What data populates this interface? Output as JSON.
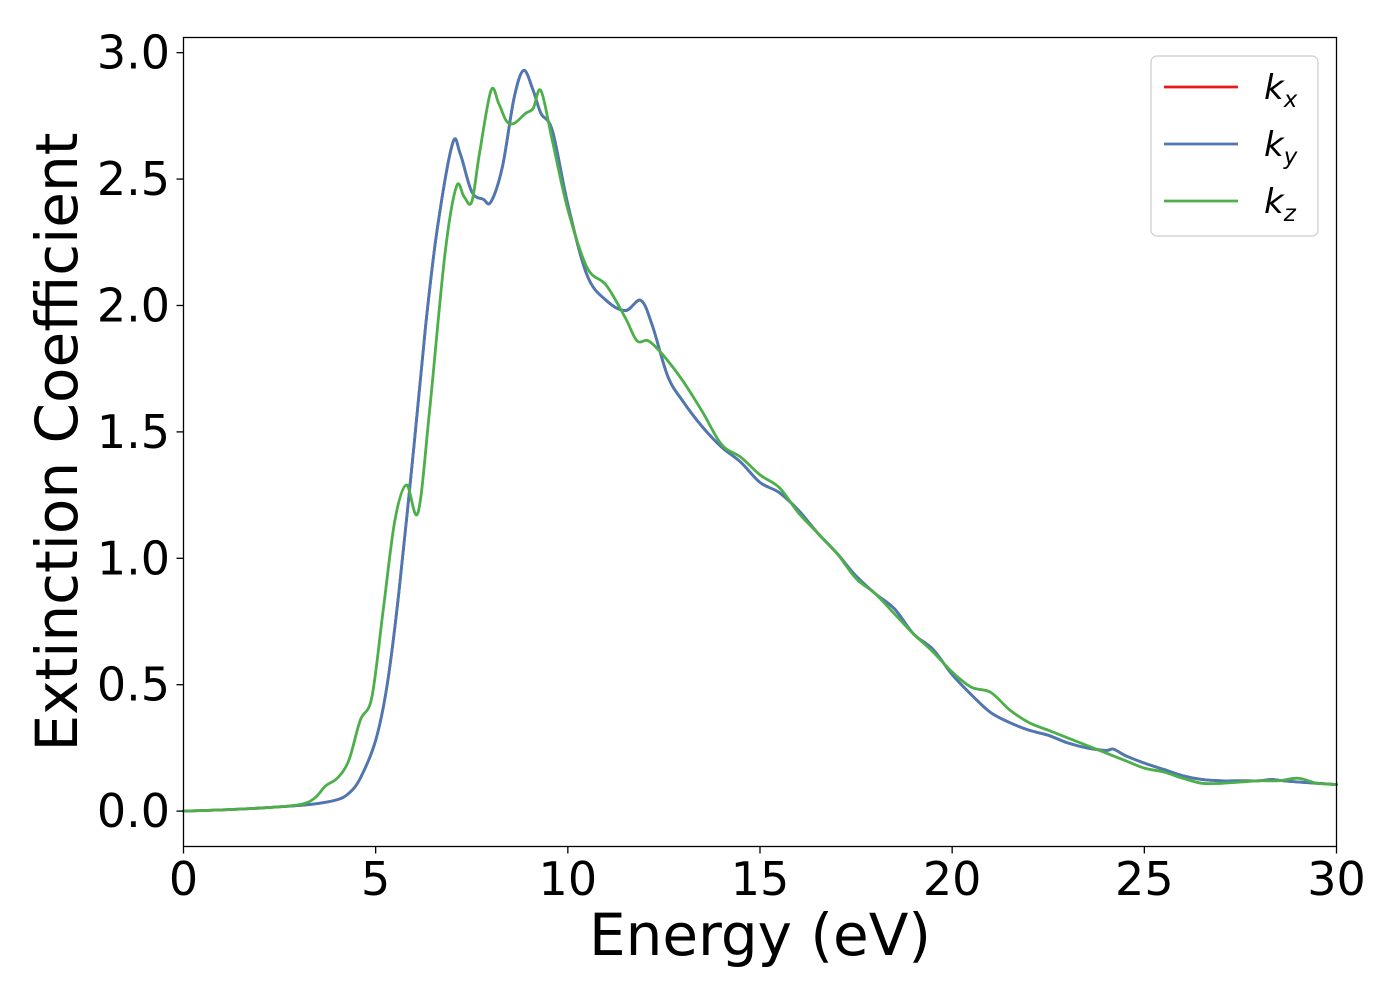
{
  "chart_data": {
    "type": "line",
    "title": "",
    "xlabel": "Energy (eV)",
    "ylabel": "Extinction Coefficient",
    "xlim": [
      0,
      30
    ],
    "ylim": [
      -0.14,
      3.06
    ],
    "x_ticks": [
      0,
      5,
      10,
      15,
      20,
      25,
      30
    ],
    "x_tick_labels": [
      "0",
      "5",
      "10",
      "15",
      "20",
      "25",
      "30"
    ],
    "y_ticks": [
      0.0,
      0.5,
      1.0,
      1.5,
      2.0,
      2.5,
      3.0
    ],
    "y_tick_labels": [
      "0.0",
      "0.5",
      "1.0",
      "1.5",
      "2.0",
      "2.5",
      "3.0"
    ],
    "grid": false,
    "legend_position": "top-right",
    "series": [
      {
        "name": "k_x",
        "label_base": "k",
        "label_sub": "x",
        "color": "#e41a1c",
        "x": [
          0,
          1,
          2,
          3,
          3.5,
          4,
          4.3,
          4.6,
          5,
          5.3,
          5.6,
          6,
          6.3,
          6.6,
          7,
          7.2,
          7.5,
          7.8,
          8,
          8.3,
          8.6,
          8.85,
          9.1,
          9.3,
          9.6,
          10,
          10.5,
          11,
          11.5,
          11.9,
          12.2,
          12.6,
          13,
          13.5,
          14,
          14.5,
          15,
          15.5,
          16,
          16.5,
          17,
          17.5,
          18,
          18.5,
          19,
          19.5,
          20,
          20.5,
          21,
          21.5,
          22,
          22.5,
          23,
          23.5,
          24,
          24.2,
          24.5,
          25,
          25.5,
          26,
          26.5,
          27,
          27.5,
          28,
          28.3,
          28.6,
          29,
          29.5,
          30
        ],
        "y": [
          0.0,
          0.005,
          0.012,
          0.022,
          0.03,
          0.045,
          0.07,
          0.13,
          0.28,
          0.5,
          0.86,
          1.45,
          1.92,
          2.3,
          2.64,
          2.6,
          2.45,
          2.42,
          2.41,
          2.55,
          2.82,
          2.93,
          2.85,
          2.76,
          2.69,
          2.4,
          2.12,
          2.02,
          1.98,
          2.02,
          1.92,
          1.72,
          1.62,
          1.52,
          1.44,
          1.38,
          1.3,
          1.26,
          1.19,
          1.1,
          1.02,
          0.93,
          0.86,
          0.8,
          0.7,
          0.64,
          0.54,
          0.46,
          0.39,
          0.35,
          0.32,
          0.3,
          0.27,
          0.25,
          0.24,
          0.245,
          0.22,
          0.19,
          0.165,
          0.14,
          0.125,
          0.12,
          0.12,
          0.12,
          0.125,
          0.12,
          0.115,
          0.11,
          0.105
        ]
      },
      {
        "name": "k_y",
        "label_base": "k",
        "label_sub": "y",
        "color": "#4a7ab5",
        "x": [
          0,
          1,
          2,
          3,
          3.5,
          4,
          4.3,
          4.6,
          5,
          5.3,
          5.6,
          6,
          6.3,
          6.6,
          7,
          7.2,
          7.5,
          7.8,
          8,
          8.3,
          8.6,
          8.85,
          9.1,
          9.3,
          9.6,
          10,
          10.5,
          11,
          11.5,
          11.9,
          12.2,
          12.6,
          13,
          13.5,
          14,
          14.5,
          15,
          15.5,
          16,
          16.5,
          17,
          17.5,
          18,
          18.5,
          19,
          19.5,
          20,
          20.5,
          21,
          21.5,
          22,
          22.5,
          23,
          23.5,
          24,
          24.2,
          24.5,
          25,
          25.5,
          26,
          26.5,
          27,
          27.5,
          28,
          28.3,
          28.6,
          29,
          29.5,
          30
        ],
        "y": [
          0.0,
          0.005,
          0.012,
          0.022,
          0.03,
          0.045,
          0.07,
          0.13,
          0.28,
          0.5,
          0.86,
          1.45,
          1.92,
          2.3,
          2.64,
          2.6,
          2.45,
          2.42,
          2.41,
          2.55,
          2.82,
          2.93,
          2.85,
          2.76,
          2.69,
          2.4,
          2.12,
          2.02,
          1.98,
          2.02,
          1.92,
          1.72,
          1.62,
          1.52,
          1.44,
          1.38,
          1.3,
          1.26,
          1.19,
          1.1,
          1.02,
          0.93,
          0.86,
          0.8,
          0.7,
          0.64,
          0.54,
          0.46,
          0.39,
          0.35,
          0.32,
          0.3,
          0.27,
          0.25,
          0.24,
          0.245,
          0.22,
          0.19,
          0.165,
          0.14,
          0.125,
          0.12,
          0.12,
          0.12,
          0.125,
          0.12,
          0.115,
          0.11,
          0.105
        ]
      },
      {
        "name": "k_z",
        "label_base": "k",
        "label_sub": "z",
        "color": "#4daf4a",
        "x": [
          0,
          1,
          2,
          3,
          3.4,
          3.7,
          4,
          4.3,
          4.6,
          4.9,
          5.2,
          5.5,
          5.8,
          6.1,
          6.4,
          6.8,
          7.1,
          7.3,
          7.5,
          7.7,
          8.0,
          8.2,
          8.4,
          8.6,
          8.9,
          9.1,
          9.3,
          9.6,
          10,
          10.5,
          11,
          11.5,
          11.8,
          12.1,
          12.5,
          13,
          13.5,
          14,
          14.5,
          15,
          15.5,
          16,
          16.5,
          17,
          17.5,
          18,
          18.5,
          19,
          19.5,
          20,
          20.5,
          21,
          21.5,
          22,
          22.5,
          23,
          23.5,
          24,
          24.5,
          25,
          25.5,
          26,
          26.5,
          27,
          27.5,
          28,
          28.5,
          29,
          29.5,
          30
        ],
        "y": [
          0.0,
          0.005,
          0.012,
          0.025,
          0.05,
          0.1,
          0.13,
          0.2,
          0.36,
          0.45,
          0.8,
          1.15,
          1.29,
          1.18,
          1.58,
          2.2,
          2.47,
          2.43,
          2.41,
          2.6,
          2.85,
          2.8,
          2.73,
          2.72,
          2.76,
          2.78,
          2.85,
          2.65,
          2.38,
          2.15,
          2.08,
          1.95,
          1.86,
          1.86,
          1.8,
          1.7,
          1.58,
          1.45,
          1.4,
          1.33,
          1.28,
          1.18,
          1.1,
          1.02,
          0.92,
          0.86,
          0.78,
          0.7,
          0.63,
          0.55,
          0.49,
          0.47,
          0.4,
          0.35,
          0.32,
          0.29,
          0.26,
          0.23,
          0.2,
          0.17,
          0.155,
          0.13,
          0.11,
          0.11,
          0.115,
          0.12,
          0.12,
          0.13,
          0.11,
          0.105
        ]
      }
    ]
  }
}
